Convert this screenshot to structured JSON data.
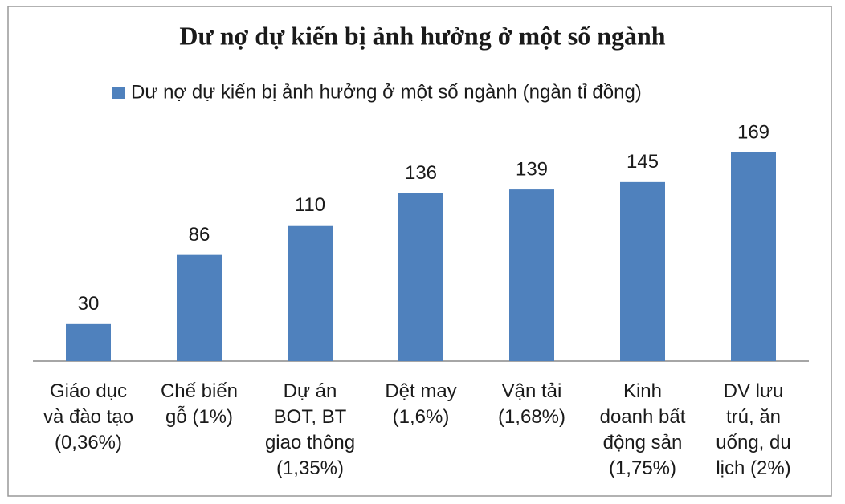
{
  "chart_data": {
    "type": "bar",
    "title": "Dư nợ dự kiến bị ảnh hưởng ở một số ngành",
    "legend": "Dư nợ dự kiến bị ảnh hưởng ở một số ngành (ngàn tỉ đồng)",
    "categories": [
      "Giáo dục\nvà đào tạo\n(0,36%)",
      "Chế biến\ngỗ (1%)",
      "Dự án\nBOT, BT\ngiao thông\n(1,35%)",
      "Dệt may\n(1,6%)",
      "Vận tải\n(1,68%)",
      "Kinh\ndoanh bất\nđộng sản\n(1,75%)",
      "DV lưu\ntrú, ăn\nuống, du\nlịch (2%)"
    ],
    "values": [
      30,
      86,
      110,
      136,
      139,
      145,
      169
    ],
    "color": "#4f81bd",
    "ylim": [
      0,
      180
    ]
  }
}
